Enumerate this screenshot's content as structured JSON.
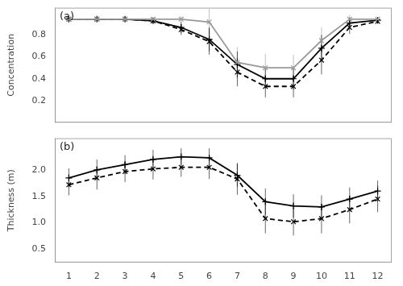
{
  "chart_data": [
    {
      "type": "line",
      "annotations": [
        "(a)"
      ],
      "y_label": "Concentration",
      "x": [
        1,
        2,
        3,
        4,
        5,
        6,
        7,
        8,
        9,
        10,
        11,
        12
      ],
      "series": [
        {
          "color": "#999999",
          "line_style": "solid",
          "marker": "x",
          "values": [
            0.945,
            0.945,
            0.945,
            0.945,
            0.945,
            0.92,
            0.55,
            0.5,
            0.5,
            0.75,
            0.945,
            0.945
          ],
          "errors": [
            0.01,
            0.01,
            0.01,
            0.01,
            0.03,
            0.12,
            0.14,
            0.13,
            0.12,
            0.12,
            0.04,
            0.01
          ]
        },
        {
          "color": "#000000",
          "line_style": "solid",
          "marker": "+",
          "values": [
            0.945,
            0.945,
            0.945,
            0.93,
            0.87,
            0.76,
            0.53,
            0.4,
            0.4,
            0.68,
            0.91,
            0.935
          ],
          "errors": [
            0.01,
            0.01,
            0.01,
            0.02,
            0.05,
            0.11,
            0.12,
            0.09,
            0.1,
            0.12,
            0.05,
            0.02
          ]
        },
        {
          "color": "#000000",
          "line_style": "dashed",
          "marker": "x",
          "values": [
            0.945,
            0.945,
            0.945,
            0.93,
            0.85,
            0.74,
            0.46,
            0.33,
            0.33,
            0.57,
            0.87,
            0.925
          ],
          "errors": [
            0.01,
            0.01,
            0.01,
            0.02,
            0.05,
            0.12,
            0.13,
            0.1,
            0.1,
            0.13,
            0.06,
            0.02
          ]
        }
      ],
      "xlim": [
        0.5,
        12.5
      ],
      "xticks": [
        1,
        2,
        3,
        4,
        5,
        6,
        7,
        8,
        9,
        10,
        11,
        12
      ],
      "ylim": [
        0.0,
        1.05
      ],
      "yticks": [
        0.2,
        0.4,
        0.6,
        0.8
      ],
      "tick_labels": "y",
      "grid": false
    },
    {
      "type": "line",
      "annotations": [
        "(b)"
      ],
      "y_label": "Thickness (m)",
      "x": [
        1,
        2,
        3,
        4,
        5,
        6,
        7,
        8,
        9,
        10,
        11,
        12
      ],
      "series": [
        {
          "color": "#000000",
          "line_style": "solid",
          "marker": "+",
          "values": [
            1.85,
            2.0,
            2.1,
            2.2,
            2.25,
            2.23,
            1.9,
            1.4,
            1.32,
            1.3,
            1.45,
            1.6
          ],
          "errors": [
            0.18,
            0.2,
            0.18,
            0.18,
            0.16,
            0.18,
            0.22,
            0.25,
            0.22,
            0.22,
            0.22,
            0.2
          ]
        },
        {
          "color": "#000000",
          "line_style": "dashed",
          "marker": "x",
          "values": [
            1.72,
            1.85,
            1.97,
            2.02,
            2.05,
            2.05,
            1.83,
            1.08,
            1.02,
            1.08,
            1.25,
            1.45
          ],
          "errors": [
            0.2,
            0.22,
            0.2,
            0.2,
            0.18,
            0.22,
            0.3,
            0.28,
            0.26,
            0.28,
            0.26,
            0.25
          ]
        }
      ],
      "xlim": [
        0.5,
        12.5
      ],
      "xticks": [
        1,
        2,
        3,
        4,
        5,
        6,
        7,
        8,
        9,
        10,
        11,
        12
      ],
      "ylim": [
        0.25,
        2.6
      ],
      "yticks": [
        0.5,
        {
          "value": 1,
          "label": "1.0"
        },
        1.5,
        {
          "value": 2,
          "label": "2.0"
        }
      ],
      "grid": false
    }
  ]
}
